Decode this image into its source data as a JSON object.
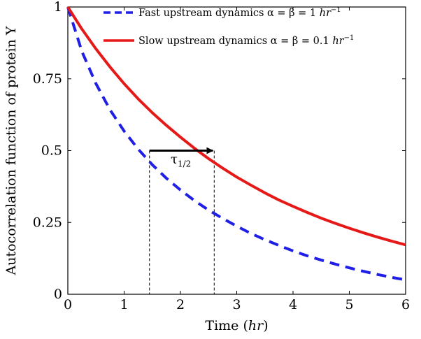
{
  "chart_data": {
    "type": "line",
    "xlabel": "Time (",
    "xlabel_unit": "hr",
    "xlabel_close": ")",
    "ylabel": "Autocorrelation function of protein Y",
    "xlim": [
      0,
      6
    ],
    "ylim": [
      0,
      1
    ],
    "xticks": [
      "0",
      "1",
      "2",
      "3",
      "4",
      "5",
      "6"
    ],
    "yticks": [
      "0",
      "0.25",
      "0.5",
      "0.75",
      "1"
    ],
    "grid": false,
    "legend_position": "top-right",
    "series": [
      {
        "name": "Fast upstream dynamics α = β = 1 hr⁻¹",
        "legend_text": "Fast upstream dynamics α = β = 1 ",
        "unit": "hr",
        "exponent": "−1",
        "color": "#1f1fe6",
        "style": "dashed",
        "x": [
          0,
          0.25,
          0.5,
          0.75,
          1,
          1.25,
          1.5,
          1.75,
          2,
          2.25,
          2.5,
          2.75,
          3,
          3.25,
          3.5,
          3.75,
          4,
          4.25,
          4.5,
          4.75,
          5,
          5.25,
          5.5,
          5.75,
          6
        ],
        "y": [
          1,
          0.845,
          0.733,
          0.642,
          0.568,
          0.505,
          0.451,
          0.404,
          0.363,
          0.326,
          0.293,
          0.264,
          0.237,
          0.212,
          0.19,
          0.17,
          0.151,
          0.134,
          0.119,
          0.105,
          0.092,
          0.08,
          0.069,
          0.059,
          0.05
        ]
      },
      {
        "name": "Slow upstream dynamics α = β = 0.1 hr⁻¹",
        "legend_text": "Slow upstream dynamics α = β = 0.1 ",
        "unit": "hr",
        "exponent": "−1",
        "color": "#e61919",
        "style": "solid",
        "x": [
          0,
          0.25,
          0.5,
          0.75,
          1,
          1.25,
          1.5,
          1.75,
          2,
          2.25,
          2.5,
          2.75,
          3,
          3.25,
          3.5,
          3.75,
          4,
          4.25,
          4.5,
          4.75,
          5,
          5.25,
          5.5,
          5.75,
          6
        ],
        "y": [
          1,
          0.923,
          0.854,
          0.791,
          0.733,
          0.68,
          0.632,
          0.588,
          0.547,
          0.508,
          0.472,
          0.439,
          0.408,
          0.38,
          0.353,
          0.328,
          0.306,
          0.285,
          0.265,
          0.247,
          0.23,
          0.214,
          0.199,
          0.185,
          0.172
        ]
      }
    ],
    "annotations": {
      "arrow": {
        "x_start": 1.45,
        "x_end": 2.6,
        "y": 0.5
      },
      "label": "τ",
      "label_sub": "1/2",
      "vlines": [
        1.45,
        2.6
      ]
    }
  }
}
